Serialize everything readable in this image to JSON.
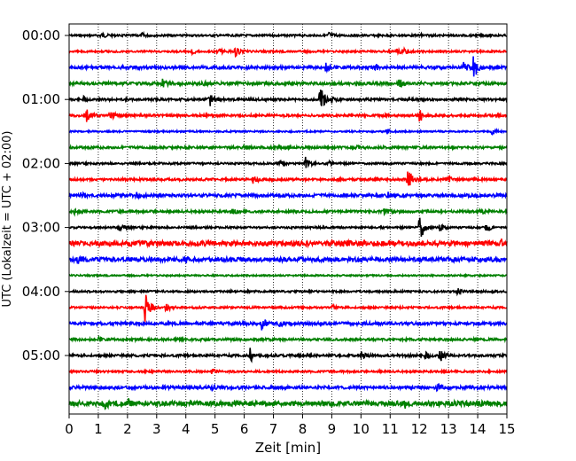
{
  "chart_data": {
    "type": "line",
    "title": "",
    "xlabel": "Zeit  [min]",
    "ylabel": "UTC (Lokalzeit = UTC + 02:00)",
    "xlim": [
      0,
      15
    ],
    "xticks": [
      0,
      1,
      2,
      3,
      4,
      5,
      6,
      7,
      8,
      9,
      10,
      11,
      12,
      13,
      14,
      15
    ],
    "grid_x": true,
    "row_interval_min": 15,
    "row_labels": [
      {
        "row": 0,
        "label": "00:00"
      },
      {
        "row": 4,
        "label": "01:00"
      },
      {
        "row": 8,
        "label": "02:00"
      },
      {
        "row": 12,
        "label": "03:00"
      },
      {
        "row": 16,
        "label": "04:00"
      },
      {
        "row": 20,
        "label": "05:00"
      }
    ],
    "color_cycle": [
      "#000000",
      "#ff0000",
      "#0000ff",
      "#008000"
    ],
    "traces": [
      {
        "row": 0,
        "noise": 0.1,
        "events": [
          [
            1.1,
            0.3
          ],
          [
            2.5,
            0.2
          ],
          [
            8.9,
            0.35
          ],
          [
            12.0,
            0.2
          ]
        ]
      },
      {
        "row": 1,
        "noise": 0.1,
        "events": [
          [
            4.2,
            0.3
          ],
          [
            5.1,
            0.35
          ],
          [
            5.7,
            0.5
          ],
          [
            11.2,
            0.4
          ],
          [
            11.5,
            0.3
          ]
        ]
      },
      {
        "row": 2,
        "noise": 0.15,
        "events": [
          [
            8.8,
            0.4
          ],
          [
            10.5,
            0.3
          ],
          [
            13.5,
            0.5
          ],
          [
            13.85,
            1.4
          ]
        ]
      },
      {
        "row": 3,
        "noise": 0.15,
        "events": [
          [
            3.2,
            0.4
          ],
          [
            4.6,
            0.25
          ],
          [
            11.3,
            0.5
          ]
        ]
      },
      {
        "row": 4,
        "noise": 0.12,
        "events": [
          [
            0.5,
            0.25
          ],
          [
            4.8,
            0.9
          ],
          [
            8.6,
            1.8
          ],
          [
            9.0,
            0.3
          ]
        ]
      },
      {
        "row": 5,
        "noise": 0.12,
        "events": [
          [
            0.6,
            0.6
          ],
          [
            1.4,
            0.8
          ],
          [
            12.0,
            0.7
          ]
        ]
      },
      {
        "row": 6,
        "noise": 0.08,
        "events": [
          [
            10.9,
            0.25
          ],
          [
            14.5,
            0.35
          ]
        ]
      },
      {
        "row": 7,
        "noise": 0.12,
        "events": [
          [
            6.0,
            0.25
          ],
          [
            9.8,
            0.2
          ]
        ]
      },
      {
        "row": 8,
        "noise": 0.1,
        "events": [
          [
            7.2,
            0.3
          ],
          [
            8.1,
            0.6
          ],
          [
            8.9,
            0.25
          ]
        ]
      },
      {
        "row": 9,
        "noise": 0.12,
        "events": [
          [
            6.3,
            0.4
          ],
          [
            11.6,
            1.1
          ],
          [
            13.0,
            0.25
          ]
        ]
      },
      {
        "row": 10,
        "noise": 0.15,
        "events": [
          [
            0.4,
            0.35
          ],
          [
            2.3,
            0.3
          ],
          [
            10.9,
            0.4
          ]
        ]
      },
      {
        "row": 11,
        "noise": 0.12,
        "events": [
          [
            0.2,
            0.3
          ],
          [
            5.6,
            0.25
          ],
          [
            10.8,
            0.4
          ],
          [
            14.1,
            0.35
          ]
        ]
      },
      {
        "row": 12,
        "noise": 0.1,
        "events": [
          [
            1.7,
            0.4
          ],
          [
            12.0,
            1.8
          ],
          [
            12.7,
            0.4
          ],
          [
            14.3,
            0.5
          ]
        ]
      },
      {
        "row": 13,
        "noise": 0.25,
        "events": [
          [
            9.3,
            0.3
          ],
          [
            14.8,
            0.35
          ]
        ]
      },
      {
        "row": 14,
        "noise": 0.22,
        "events": [
          [
            0.3,
            0.3
          ],
          [
            4.0,
            0.2
          ]
        ]
      },
      {
        "row": 15,
        "noise": 0.08,
        "events": []
      },
      {
        "row": 16,
        "noise": 0.1,
        "events": [
          [
            13.3,
            0.35
          ],
          [
            14.5,
            0.25
          ]
        ]
      },
      {
        "row": 17,
        "noise": 0.1,
        "events": [
          [
            2.6,
            1.6
          ],
          [
            3.3,
            0.5
          ],
          [
            9.0,
            0.25
          ]
        ]
      },
      {
        "row": 18,
        "noise": 0.15,
        "events": [
          [
            6.6,
            0.7
          ],
          [
            7.2,
            0.25
          ]
        ]
      },
      {
        "row": 19,
        "noise": 0.12,
        "events": [
          [
            1.0,
            0.2
          ]
        ]
      },
      {
        "row": 20,
        "noise": 0.12,
        "events": [
          [
            6.2,
            0.7
          ],
          [
            10.0,
            0.35
          ],
          [
            12.2,
            0.4
          ],
          [
            12.7,
            0.7
          ]
        ]
      },
      {
        "row": 21,
        "noise": 0.1,
        "events": [
          [
            4.9,
            0.25
          ]
        ]
      },
      {
        "row": 22,
        "noise": 0.15,
        "events": [
          [
            4.9,
            0.3
          ],
          [
            12.6,
            0.35
          ]
        ]
      },
      {
        "row": 23,
        "noise": 0.25,
        "events": [
          [
            1.2,
            0.5
          ],
          [
            2.0,
            0.4
          ],
          [
            11.5,
            0.35
          ]
        ]
      }
    ]
  }
}
